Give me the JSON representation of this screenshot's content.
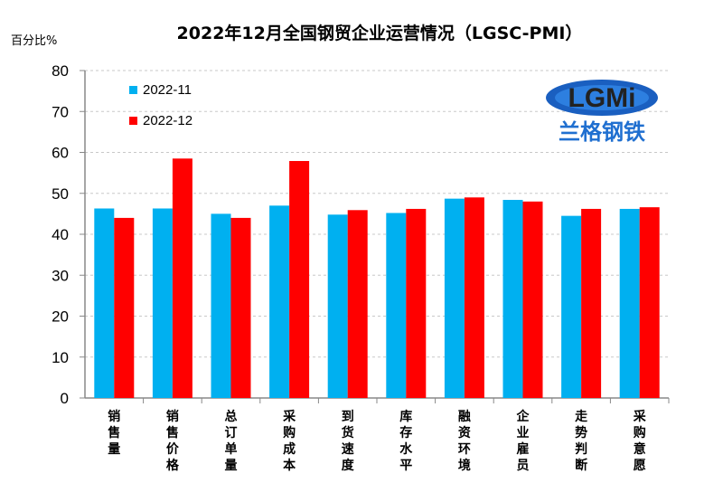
{
  "chart_data": {
    "type": "bar",
    "title": "2022年12月全国钢贸企业运营情况（LGSC-PMI）",
    "ylabel": "百分比%",
    "xlabel": "",
    "ylim": [
      0,
      80
    ],
    "yticks": [
      0,
      10,
      20,
      30,
      40,
      50,
      60,
      70,
      80
    ],
    "grid": true,
    "legend_position": "top-left",
    "categories": [
      "销售量",
      "销售价格",
      "总订单量",
      "采购成本",
      "到货速度",
      "库存水平",
      "融资环境",
      "企业雇员",
      "走势判断",
      "采购意愿"
    ],
    "series": [
      {
        "name": "2022-11",
        "color": "#00b0f0",
        "values": [
          46.3,
          46.3,
          45.0,
          47.0,
          44.8,
          45.2,
          48.7,
          48.4,
          44.5,
          46.2
        ]
      },
      {
        "name": "2022-12",
        "color": "#ff0000",
        "values": [
          44.0,
          58.5,
          44.0,
          57.9,
          45.9,
          46.2,
          49.0,
          48.0,
          46.2,
          46.6
        ]
      }
    ]
  },
  "logo": {
    "text": "LGMi",
    "subtext": "兰格钢铁"
  }
}
